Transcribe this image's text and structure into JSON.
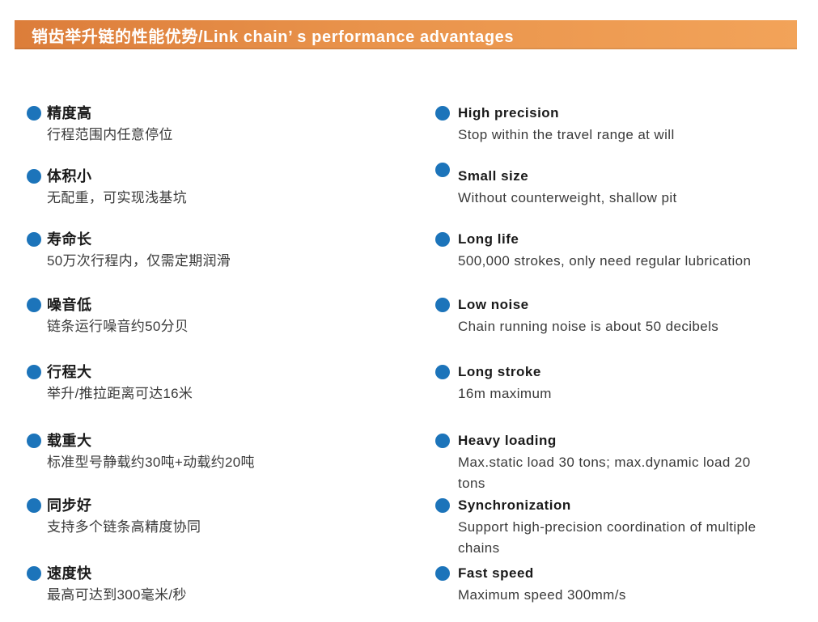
{
  "page": {
    "header": {
      "title": "销齿举升链的性能优势/Link chain’ s performance advantages"
    },
    "colors": {
      "header_orange_start": "#dc7d3a",
      "header_orange_end": "#f2a359",
      "bullet_blue": "#1c74ba",
      "title_text": "#1a1a1a",
      "desc_text": "#3a3a3a"
    },
    "features": [
      {
        "zh": {
          "title": "精度高",
          "desc": "行程范围内任意停位"
        },
        "en": {
          "title": "High precision",
          "desc": "Stop within the travel range at will"
        }
      },
      {
        "zh": {
          "title": "体积小",
          "desc": "无配重，可实现浅基坑"
        },
        "en": {
          "title": "Small size",
          "desc": "Without counterweight, shallow pit"
        }
      },
      {
        "zh": {
          "title": "寿命长",
          "desc": "50万次行程内，仅需定期润滑"
        },
        "en": {
          "title": "Long life",
          "desc": "500,000 strokes, only need regular lubrication"
        }
      },
      {
        "zh": {
          "title": "噪音低",
          "desc": "链条运行噪音约50分贝"
        },
        "en": {
          "title": "Low noise",
          "desc": "Chain running noise is about 50 decibels"
        }
      },
      {
        "zh": {
          "title": "行程大",
          "desc": "举升/推拉距离可达16米"
        },
        "en": {
          "title": "Long stroke",
          "desc": "16m maximum"
        }
      },
      {
        "zh": {
          "title": "载重大",
          "desc": "标准型号静载约30吨+动载约20吨"
        },
        "en": {
          "title": "Heavy loading",
          "desc": "Max.static load 30 tons; max.dynamic load 20 tons"
        }
      },
      {
        "zh": {
          "title": "同步好",
          "desc": "支持多个链条高精度协同"
        },
        "en": {
          "title": "Synchronization",
          "desc": "Support high-precision coordination of multiple chains"
        }
      },
      {
        "zh": {
          "title": "速度快",
          "desc": "最高可达到300毫米/秒"
        },
        "en": {
          "title": "Fast speed",
          "desc": "Maximum speed 300mm/s"
        }
      }
    ]
  }
}
